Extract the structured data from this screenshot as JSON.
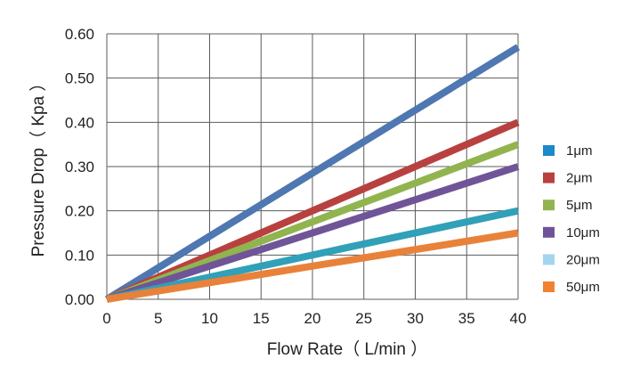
{
  "chart_data": {
    "type": "line",
    "title": "",
    "xlabel": "Flow Rate（ L/min ）",
    "ylabel": "Pressure Drop（ Kpa ）",
    "xlim": [
      0,
      40
    ],
    "ylim": [
      0,
      0.6
    ],
    "grid": true,
    "legend_position": "right",
    "x_ticks": [
      "0",
      "5",
      "10",
      "15",
      "20",
      "25",
      "30",
      "35",
      "40"
    ],
    "y_ticks": [
      "0.00",
      "0.10",
      "0.20",
      "0.30",
      "0.40",
      "0.50",
      "0.60"
    ],
    "x": [
      0,
      40
    ],
    "series": [
      {
        "name": "1μm",
        "color": "#1a88c9",
        "values": [
          0,
          0.57
        ]
      },
      {
        "name": "2μm",
        "color": "#b8413f",
        "values": [
          0,
          0.4
        ]
      },
      {
        "name": "5μm",
        "color": "#91b44f",
        "values": [
          0,
          0.35
        ]
      },
      {
        "name": "10μm",
        "color": "#6f5597",
        "values": [
          0,
          0.3
        ]
      },
      {
        "name": "20μm",
        "color": "#a4d4ee",
        "values": [
          0,
          0.2
        ]
      },
      {
        "name": "50μm",
        "color": "#f0822f",
        "values": [
          0,
          0.15
        ]
      }
    ],
    "lines_drawn": [
      {
        "color": "#4f77b1",
        "values": [
          0,
          0.57
        ]
      },
      {
        "color": "#b8413f",
        "values": [
          0,
          0.4
        ]
      },
      {
        "color": "#91b44f",
        "values": [
          0,
          0.35
        ]
      },
      {
        "color": "#6f5597",
        "values": [
          0,
          0.3
        ]
      },
      {
        "color": "#31a0b9",
        "values": [
          0,
          0.2
        ]
      },
      {
        "color": "#e8823a",
        "values": [
          0,
          0.15
        ]
      }
    ]
  }
}
